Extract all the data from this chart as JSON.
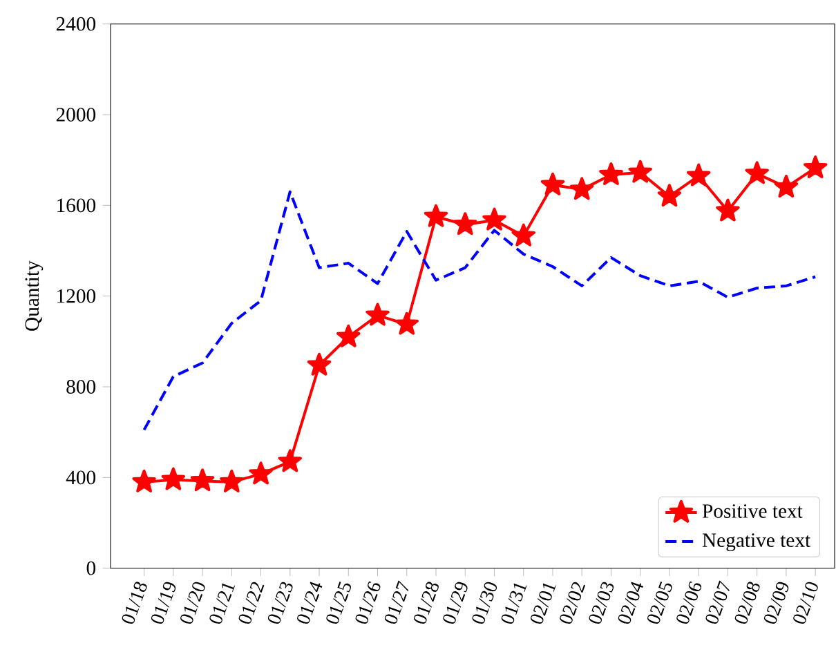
{
  "chart_data": {
    "type": "line",
    "ylabel": "Quantity",
    "categories": [
      "01/18",
      "01/19",
      "01/20",
      "01/21",
      "01/22",
      "01/23",
      "01/24",
      "01/25",
      "01/26",
      "01/27",
      "01/28",
      "01/29",
      "01/30",
      "01/31",
      "02/01",
      "02/02",
      "02/03",
      "02/04",
      "02/05",
      "02/06",
      "02/07",
      "02/08",
      "02/09",
      "02/10"
    ],
    "series": [
      {
        "name": "Positive text",
        "color": "#ff0000",
        "marker": "star",
        "line_style": "solid",
        "values": [
          380,
          390,
          385,
          380,
          415,
          470,
          895,
          1020,
          1115,
          1075,
          1550,
          1515,
          1535,
          1465,
          1690,
          1670,
          1735,
          1745,
          1640,
          1730,
          1575,
          1740,
          1680,
          1765
        ]
      },
      {
        "name": "Negative text",
        "color": "#0000ff",
        "marker": "none",
        "line_style": "dashed",
        "values": [
          610,
          845,
          905,
          1080,
          1180,
          1660,
          1325,
          1345,
          1255,
          1485,
          1270,
          1325,
          1490,
          1385,
          1330,
          1245,
          1370,
          1290,
          1245,
          1265,
          1195,
          1235,
          1245,
          1285
        ]
      }
    ],
    "ylim": [
      0,
      2400
    ],
    "yticks": [
      0,
      400,
      800,
      1200,
      1600,
      2000,
      2400
    ],
    "grid": false,
    "legend": "bottom right"
  }
}
